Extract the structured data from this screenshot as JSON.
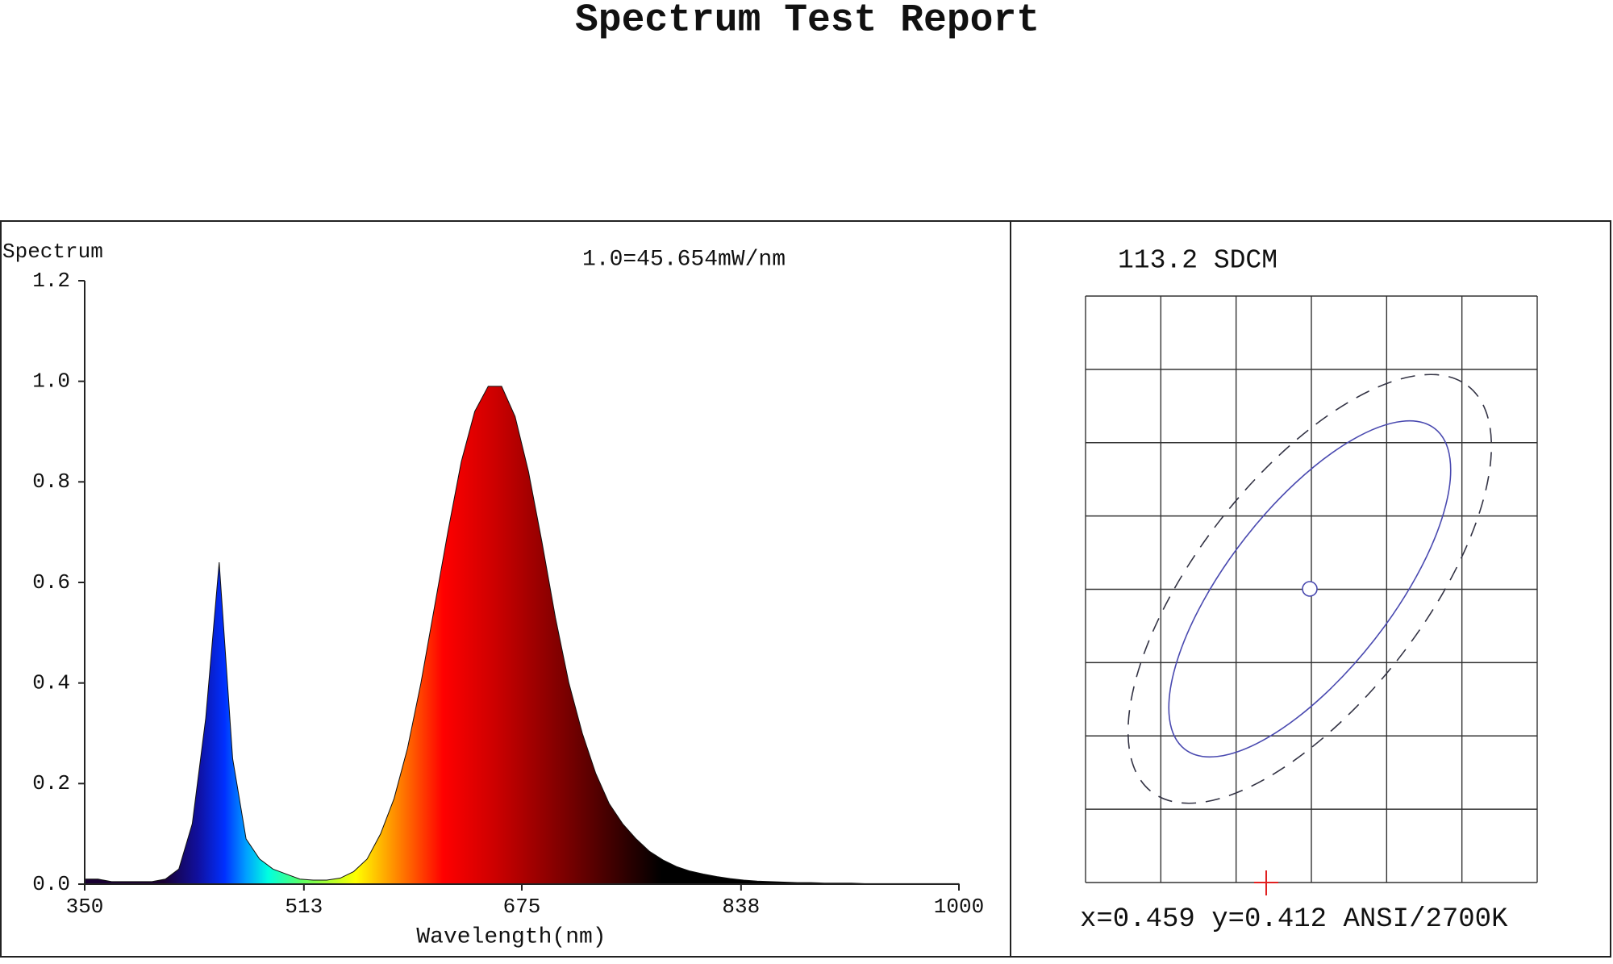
{
  "report_title": "Spectrum Test Report",
  "chart_data": [
    {
      "type": "area",
      "y_label": "Spectrum",
      "annotation": "1.0=45.654mW/nm",
      "x_label": "Wavelength(nm)",
      "x": [
        350,
        360,
        370,
        380,
        390,
        400,
        410,
        420,
        430,
        440,
        450,
        460,
        470,
        480,
        490,
        500,
        510,
        520,
        530,
        540,
        550,
        560,
        570,
        580,
        590,
        600,
        610,
        620,
        630,
        640,
        650,
        660,
        670,
        680,
        690,
        700,
        710,
        720,
        730,
        740,
        750,
        760,
        770,
        780,
        790,
        800,
        810,
        820,
        830,
        840,
        850,
        860,
        870,
        880,
        890,
        900,
        910,
        920,
        930,
        940,
        950,
        960,
        970,
        980,
        990,
        1000
      ],
      "values": [
        0.01,
        0.01,
        0.005,
        0.005,
        0.005,
        0.005,
        0.01,
        0.03,
        0.12,
        0.33,
        0.64,
        0.25,
        0.09,
        0.05,
        0.03,
        0.02,
        0.01,
        0.008,
        0.008,
        0.012,
        0.025,
        0.05,
        0.1,
        0.17,
        0.27,
        0.4,
        0.55,
        0.7,
        0.84,
        0.94,
        0.99,
        0.99,
        0.93,
        0.82,
        0.68,
        0.53,
        0.4,
        0.3,
        0.22,
        0.16,
        0.12,
        0.09,
        0.065,
        0.048,
        0.035,
        0.026,
        0.02,
        0.015,
        0.011,
        0.008,
        0.006,
        0.005,
        0.004,
        0.003,
        0.003,
        0.002,
        0.002,
        0.002,
        0.001,
        0.001,
        0.001,
        0.001,
        0.001,
        0.001,
        0.001,
        0.001
      ],
      "xlim": [
        350,
        1000
      ],
      "xticks": [
        350,
        513,
        675,
        838,
        1000
      ],
      "ylim": [
        0,
        1.2
      ],
      "yticks": [
        {
          "value": 0,
          "label": "0.0"
        },
        0.2,
        0.4,
        0.6,
        0.8,
        {
          "value": 1,
          "label": "1.0"
        },
        1.2
      ]
    },
    {
      "type": "chromaticity",
      "title": "113.2 SDCM",
      "label": "x=0.459  y=0.412  ANSI/2700K"
    }
  ]
}
